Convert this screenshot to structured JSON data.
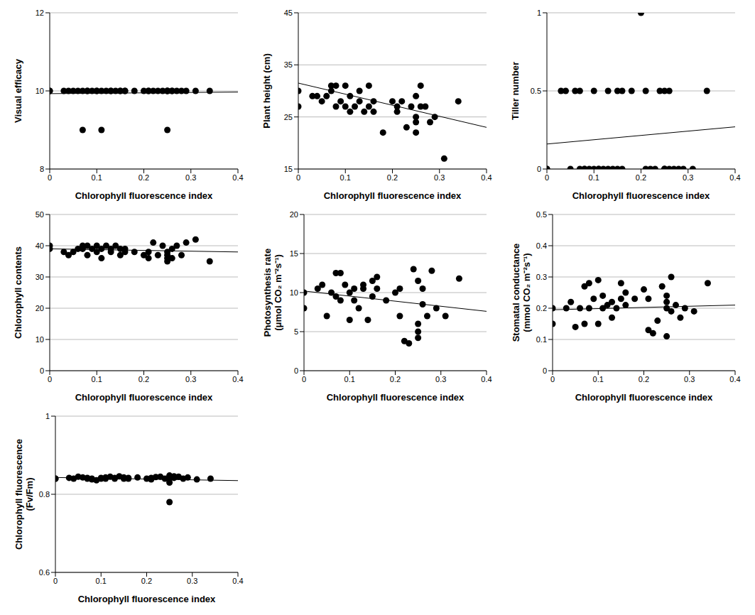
{
  "chart_data": [
    {
      "type": "scatter",
      "xlabel": "Chlorophyll fluorescence index",
      "ylabel": [
        "Visual efficacy"
      ],
      "color": "#000000",
      "marker": "circle",
      "grid": true,
      "xlim": [
        0,
        0.4
      ],
      "xticks": [
        0,
        0.1,
        0.2,
        0.3,
        0.4
      ],
      "ylim": [
        8,
        12
      ],
      "yticks": [
        8,
        10,
        12
      ],
      "x": [
        0,
        0,
        0.03,
        0.04,
        0.05,
        0.06,
        0.07,
        0.07,
        0.08,
        0.08,
        0.09,
        0.1,
        0.1,
        0.11,
        0.11,
        0.12,
        0.13,
        0.13,
        0.14,
        0.15,
        0.15,
        0.16,
        0.16,
        0.18,
        0.2,
        0.21,
        0.21,
        0.22,
        0.23,
        0.24,
        0.25,
        0.25,
        0.25,
        0.25,
        0.26,
        0.26,
        0.27,
        0.28,
        0.29,
        0.31,
        0.34
      ],
      "values": [
        10,
        10,
        10,
        10,
        10,
        10,
        9,
        10,
        10,
        10,
        10,
        10,
        10,
        9,
        10,
        10,
        10,
        10,
        10,
        10,
        10,
        10,
        10,
        10,
        10,
        10,
        10,
        10,
        10,
        10,
        9,
        10,
        10,
        10,
        10,
        10,
        10,
        10,
        10,
        10,
        10
      ],
      "trend": {
        "x": [
          0,
          0.4
        ],
        "values": [
          9.93,
          9.97
        ]
      }
    },
    {
      "type": "scatter",
      "xlabel": "Chlorophyll fluorescence index",
      "ylabel": [
        "Plant height (cm)"
      ],
      "color": "#000000",
      "marker": "circle",
      "grid": true,
      "xlim": [
        0,
        0.4
      ],
      "xticks": [
        0,
        0.1,
        0.2,
        0.3,
        0.4
      ],
      "ylim": [
        15,
        45
      ],
      "yticks": [
        15,
        25,
        35,
        45
      ],
      "x": [
        0,
        0,
        0.03,
        0.04,
        0.05,
        0.06,
        0.07,
        0.07,
        0.08,
        0.08,
        0.09,
        0.1,
        0.1,
        0.11,
        0.11,
        0.12,
        0.13,
        0.13,
        0.14,
        0.15,
        0.15,
        0.16,
        0.16,
        0.18,
        0.2,
        0.21,
        0.21,
        0.22,
        0.23,
        0.24,
        0.25,
        0.25,
        0.25,
        0.25,
        0.26,
        0.26,
        0.27,
        0.28,
        0.29,
        0.31,
        0.34
      ],
      "values": [
        27,
        30,
        29,
        29,
        28,
        29,
        31,
        30,
        27,
        31,
        28,
        27,
        31,
        29,
        26,
        27,
        30,
        28,
        26,
        31,
        27,
        28,
        26,
        22,
        28,
        26,
        27,
        28,
        23,
        27,
        29,
        24,
        22,
        25,
        31,
        27,
        27,
        24,
        25,
        17,
        28
      ],
      "trend": {
        "x": [
          0,
          0.4
        ],
        "values": [
          31.5,
          23
        ]
      }
    },
    {
      "type": "scatter",
      "xlabel": "Chlorophyll fluorescence index",
      "ylabel": [
        "Tiller number"
      ],
      "color": "#000000",
      "marker": "circle",
      "grid": true,
      "xlim": [
        0,
        0.4
      ],
      "xticks": [
        0,
        0.1,
        0.2,
        0.3,
        0.4
      ],
      "ylim": [
        0,
        1
      ],
      "yticks": [
        0,
        0.5,
        1
      ],
      "x": [
        0,
        0,
        0.03,
        0.04,
        0.05,
        0.06,
        0.07,
        0.07,
        0.08,
        0.08,
        0.09,
        0.1,
        0.1,
        0.11,
        0.11,
        0.12,
        0.13,
        0.13,
        0.14,
        0.15,
        0.15,
        0.16,
        0.16,
        0.18,
        0.2,
        0.21,
        0.21,
        0.22,
        0.23,
        0.24,
        0.25,
        0.25,
        0.25,
        0.25,
        0.26,
        0.26,
        0.27,
        0.28,
        0.29,
        0.31,
        0.34
      ],
      "values": [
        0,
        0,
        0.5,
        0.5,
        0,
        0.5,
        0,
        0.5,
        0,
        0,
        0,
        0.5,
        0,
        0,
        0,
        0,
        0.5,
        0,
        0,
        0.5,
        0,
        0.5,
        0,
        0.5,
        1,
        0,
        0.5,
        0,
        0,
        0.5,
        0.5,
        0,
        0,
        0,
        0.5,
        0,
        0,
        0,
        0,
        0,
        0.5
      ],
      "trend": {
        "x": [
          0,
          0.4
        ],
        "values": [
          0.16,
          0.27
        ]
      }
    },
    {
      "type": "scatter",
      "xlabel": "Chlorophyll fluorescence index",
      "ylabel": [
        "Chlorophyll contents"
      ],
      "color": "#000000",
      "marker": "circle",
      "grid": true,
      "xlim": [
        0,
        0.4
      ],
      "xticks": [
        0,
        0.1,
        0.2,
        0.3,
        0.4
      ],
      "ylim": [
        0,
        50
      ],
      "yticks": [
        0,
        10,
        20,
        30,
        40,
        50
      ],
      "x": [
        0,
        0,
        0.03,
        0.04,
        0.05,
        0.06,
        0.07,
        0.07,
        0.08,
        0.08,
        0.09,
        0.1,
        0.1,
        0.11,
        0.11,
        0.12,
        0.13,
        0.13,
        0.14,
        0.15,
        0.15,
        0.16,
        0.16,
        0.18,
        0.2,
        0.21,
        0.21,
        0.22,
        0.23,
        0.24,
        0.25,
        0.25,
        0.25,
        0.25,
        0.26,
        0.26,
        0.27,
        0.28,
        0.29,
        0.31,
        0.34
      ],
      "values": [
        40,
        39,
        38,
        37,
        38,
        39,
        40,
        39,
        40,
        37,
        39,
        38,
        40,
        39,
        36,
        40,
        39,
        38,
        40,
        39,
        37,
        38,
        39,
        38,
        37,
        36,
        38,
        41,
        37,
        40,
        36,
        35,
        37,
        38,
        39,
        36,
        40,
        37,
        41,
        42,
        35
      ],
      "trend": {
        "x": [
          0,
          0.4
        ],
        "values": [
          39,
          38
        ]
      }
    },
    {
      "type": "scatter",
      "xlabel": "Chlorophyll fluorescence index",
      "ylabel": [
        "Photosynthesis rate",
        "(μmol CO₂ m⁻²s⁻¹)"
      ],
      "color": "#000000",
      "marker": "circle",
      "grid": true,
      "xlim": [
        0,
        0.4
      ],
      "xticks": [
        0,
        0.1,
        0.2,
        0.3,
        0.4
      ],
      "ylim": [
        0,
        20
      ],
      "yticks": [
        0,
        5,
        10,
        15,
        20
      ],
      "x": [
        0,
        0,
        0.03,
        0.04,
        0.05,
        0.06,
        0.07,
        0.07,
        0.08,
        0.08,
        0.09,
        0.1,
        0.1,
        0.11,
        0.11,
        0.12,
        0.13,
        0.13,
        0.14,
        0.15,
        0.15,
        0.16,
        0.16,
        0.18,
        0.2,
        0.21,
        0.21,
        0.22,
        0.23,
        0.24,
        0.25,
        0.25,
        0.25,
        0.25,
        0.26,
        0.26,
        0.27,
        0.28,
        0.29,
        0.31,
        0.34
      ],
      "values": [
        8,
        10,
        10.5,
        11,
        7,
        10,
        12.5,
        9.5,
        12.5,
        9,
        11,
        6.5,
        10,
        9,
        10.5,
        8,
        10.5,
        11,
        6.5,
        11.5,
        9.5,
        12,
        10.5,
        9,
        10,
        10.5,
        7,
        3.8,
        3.5,
        13,
        11.5,
        5,
        4.2,
        6,
        8.5,
        10.5,
        7,
        12.8,
        8,
        7,
        11.8
      ],
      "trend": {
        "x": [
          0,
          0.4
        ],
        "values": [
          10.2,
          7.6
        ]
      }
    },
    {
      "type": "scatter",
      "xlabel": "Chlorophyll fluorescence index",
      "ylabel": [
        "Stomatal conductance",
        "(mmol CO₂ m⁻²s⁻¹)"
      ],
      "color": "#000000",
      "marker": "circle",
      "grid": true,
      "xlim": [
        0,
        0.4
      ],
      "xticks": [
        0,
        0.1,
        0.2,
        0.3,
        0.4
      ],
      "ylim": [
        0,
        0.5
      ],
      "yticks": [
        0,
        0.1,
        0.2,
        0.3,
        0.4,
        0.5
      ],
      "x": [
        0,
        0,
        0.03,
        0.04,
        0.05,
        0.06,
        0.07,
        0.07,
        0.08,
        0.08,
        0.09,
        0.1,
        0.1,
        0.11,
        0.11,
        0.12,
        0.13,
        0.13,
        0.14,
        0.15,
        0.15,
        0.16,
        0.16,
        0.18,
        0.2,
        0.21,
        0.21,
        0.22,
        0.23,
        0.24,
        0.25,
        0.25,
        0.25,
        0.25,
        0.26,
        0.26,
        0.27,
        0.28,
        0.29,
        0.31,
        0.34
      ],
      "values": [
        0.15,
        0.2,
        0.2,
        0.22,
        0.14,
        0.2,
        0.15,
        0.27,
        0.2,
        0.28,
        0.23,
        0.15,
        0.29,
        0.2,
        0.24,
        0.21,
        0.22,
        0.17,
        0.2,
        0.28,
        0.23,
        0.21,
        0.25,
        0.23,
        0.26,
        0.13,
        0.23,
        0.12,
        0.16,
        0.27,
        0.2,
        0.11,
        0.22,
        0.24,
        0.19,
        0.3,
        0.21,
        0.17,
        0.2,
        0.19,
        0.28
      ],
      "trend": {
        "x": [
          0,
          0.4
        ],
        "values": [
          0.195,
          0.21
        ]
      }
    },
    {
      "type": "scatter",
      "xlabel": "Chlorophyll fluorescence index",
      "ylabel": [
        "Chlorophyll fluorescence",
        "(Fv/Fm)"
      ],
      "color": "#000000",
      "marker": "circle",
      "grid": true,
      "xlim": [
        0,
        0.4
      ],
      "xticks": [
        0,
        0.1,
        0.2,
        0.3,
        0.4
      ],
      "ylim": [
        0.6,
        1
      ],
      "yticks": [
        0.6,
        0.8,
        1
      ],
      "x": [
        0,
        0,
        0.03,
        0.04,
        0.05,
        0.06,
        0.07,
        0.07,
        0.08,
        0.08,
        0.09,
        0.1,
        0.1,
        0.11,
        0.11,
        0.12,
        0.13,
        0.13,
        0.14,
        0.15,
        0.15,
        0.16,
        0.16,
        0.18,
        0.2,
        0.21,
        0.21,
        0.22,
        0.23,
        0.24,
        0.25,
        0.25,
        0.25,
        0.25,
        0.26,
        0.26,
        0.27,
        0.28,
        0.29,
        0.31,
        0.34
      ],
      "values": [
        0.84,
        0.84,
        0.842,
        0.84,
        0.845,
        0.843,
        0.84,
        0.842,
        0.838,
        0.84,
        0.836,
        0.84,
        0.842,
        0.84,
        0.843,
        0.845,
        0.84,
        0.842,
        0.846,
        0.84,
        0.843,
        0.842,
        0.84,
        0.843,
        0.84,
        0.842,
        0.838,
        0.844,
        0.845,
        0.84,
        0.848,
        0.78,
        0.83,
        0.84,
        0.846,
        0.842,
        0.845,
        0.84,
        0.843,
        0.838,
        0.84
      ],
      "trend": {
        "x": [
          0,
          0.4
        ],
        "values": [
          0.843,
          0.835
        ]
      }
    }
  ]
}
